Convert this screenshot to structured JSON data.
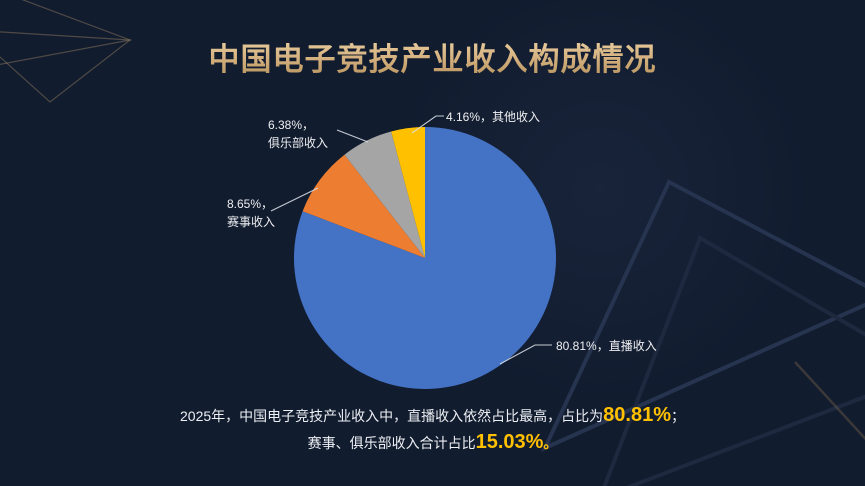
{
  "page": {
    "title": "中国电子竞技产业收入构成情况"
  },
  "chart_data": {
    "type": "pie",
    "title": "中国电子竞技产业收入构成情况",
    "unit": "percent",
    "start_angle_deg": 0,
    "direction": "clockwise",
    "legend": "none",
    "slices": [
      {
        "key": "live-streaming-revenue",
        "name": "直播收入",
        "value": 80.81,
        "color": "#4472C4",
        "label_line1": "80.81%，直播收入",
        "label_line2": ""
      },
      {
        "key": "tournament-revenue",
        "name": "赛事收入",
        "value": 8.65,
        "color": "#ED7D31",
        "label_line1": "8.65%，",
        "label_line2": "赛事收入"
      },
      {
        "key": "club-revenue",
        "name": "俱乐部收入",
        "value": 6.38,
        "color": "#A5A5A5",
        "label_line1": "6.38%，",
        "label_line2": "俱乐部收入"
      },
      {
        "key": "other-revenue",
        "name": "其他收入",
        "value": 4.16,
        "color": "#FFC000",
        "label_line1": "4.16%，其他收入",
        "label_line2": ""
      }
    ]
  },
  "caption": {
    "line1": {
      "prefix": "2025年，中国电子竞技产业收入中，直播收入依然占比最高，占比为",
      "highlight": "80.81%",
      "suffix": "；"
    },
    "line2": {
      "prefix": "赛事、俱乐部收入合计占比",
      "highlight": "15.03%",
      "suffix": "。"
    }
  },
  "colors": {
    "background": "#121c2f",
    "title_gold": "#d6b483",
    "highlight_yellow": "#FFC000",
    "leader_line": "#d9dee5",
    "pie_blue": "#4472C4",
    "pie_orange": "#ED7D31",
    "pie_gray": "#A5A5A5",
    "pie_yellow": "#FFC000"
  }
}
